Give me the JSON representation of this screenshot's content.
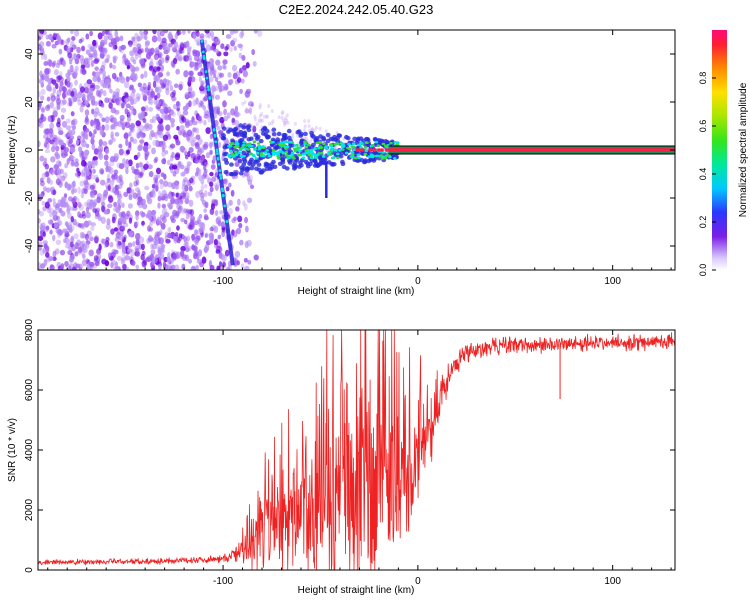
{
  "chart_data": [
    {
      "type": "heatmap",
      "title": "C2E2.2024.242.05.40.G23",
      "xlabel": "Height of straight line (km)",
      "ylabel": "Frequency (Hz)",
      "xlim": [
        -195,
        132
      ],
      "ylim": [
        -50,
        50
      ],
      "xticks": [
        -100,
        0,
        100
      ],
      "yticks": [
        -40,
        -20,
        0,
        20,
        40
      ],
      "xtick_labels": [
        "-100",
        "0",
        "100"
      ],
      "ytick_labels": [
        "-40",
        "-20",
        "0",
        "20",
        "40"
      ],
      "colorbar": {
        "label": "Normalized spectral amplitude",
        "range": [
          0,
          1
        ],
        "ticks": [
          0.0,
          0.2,
          0.4,
          0.6,
          0.8
        ],
        "tick_labels": [
          "0.0",
          "0.2",
          "0.4",
          "0.6",
          "0.8"
        ]
      },
      "features": {
        "noise_region_x": [
          -195,
          -90
        ],
        "diagonal_line": {
          "x_start": -111,
          "y_start": 46,
          "x_end": -98,
          "y_end": -30
        },
        "carrier_band_x": [
          -100,
          132
        ],
        "carrier_frequency": 0,
        "residual_line_x": -47,
        "residual_line_y": [
          -20,
          -5
        ]
      },
      "colors": {
        "low": "#b48cf5",
        "mid": "#6a00e0",
        "cyan": "#00e6e6",
        "green": "#33dd33",
        "high": "#ff1e46",
        "band_outline": "#000000"
      }
    },
    {
      "type": "line",
      "xlabel": "Height of straight line (km)",
      "ylabel": "SNR (10 * v/v)",
      "xlim": [
        -195,
        132
      ],
      "ylim": [
        0,
        8000
      ],
      "xticks": [
        -100,
        0,
        100
      ],
      "yticks": [
        0,
        2000,
        4000,
        6000,
        8000
      ],
      "xtick_labels": [
        "-100",
        "0",
        "100"
      ],
      "ytick_labels": [
        "0",
        "2000",
        "4000",
        "6000",
        "8000"
      ],
      "series": [
        {
          "name": "SNR",
          "color": "#ee2222",
          "x": [
            -195,
            -150,
            -120,
            -100,
            -90,
            -80,
            -70,
            -60,
            -50,
            -40,
            -30,
            -20,
            -15,
            -10,
            -5,
            0,
            5,
            10,
            15,
            20,
            25,
            30,
            40,
            50,
            60,
            70,
            80,
            90,
            100,
            110,
            120,
            132
          ],
          "base": [
            250,
            280,
            320,
            380,
            600,
            1000,
            1400,
            1700,
            2000,
            2200,
            2400,
            2500,
            2600,
            2800,
            3100,
            3600,
            4400,
            5400,
            6300,
            6900,
            7200,
            7350,
            7450,
            7500,
            7500,
            7520,
            7550,
            7560,
            7560,
            7580,
            7600,
            7620
          ],
          "spread": [
            120,
            120,
            130,
            150,
            500,
            1700,
            2200,
            2800,
            3600,
            4000,
            4200,
            4500,
            4200,
            3800,
            3000,
            2400,
            1600,
            1000,
            700,
            500,
            450,
            400,
            350,
            330,
            330,
            320,
            320,
            320,
            320,
            320,
            320,
            320
          ]
        }
      ],
      "dropouts": [
        {
          "x": 73,
          "y": 5700
        }
      ]
    }
  ]
}
